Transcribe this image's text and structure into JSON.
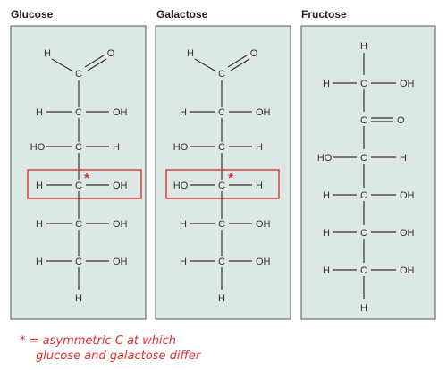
{
  "colors": {
    "panel_fill": "#dce8e6",
    "highlight": "#d93333",
    "note": "#e23030"
  },
  "structures": [
    {
      "title": "Glucose",
      "top": {
        "h_label": "H",
        "c_label": "C",
        "o_label": "O"
      },
      "rows": [
        {
          "left": "H",
          "center": "C",
          "right": "OH"
        },
        {
          "left": "HO",
          "center": "C",
          "right": "H"
        },
        {
          "left": "H",
          "center": "C",
          "right": "OH"
        },
        {
          "left": "H",
          "center": "C",
          "right": "OH"
        },
        {
          "left": "H",
          "center": "C",
          "right": "OH"
        }
      ],
      "bottom": "H",
      "highlight_row": 2
    },
    {
      "title": "Galactose",
      "top": {
        "h_label": "H",
        "c_label": "C",
        "o_label": "O"
      },
      "rows": [
        {
          "left": "H",
          "center": "C",
          "right": "OH"
        },
        {
          "left": "HO",
          "center": "C",
          "right": "H"
        },
        {
          "left": "HO",
          "center": "C",
          "right": "H"
        },
        {
          "left": "H",
          "center": "C",
          "right": "OH"
        },
        {
          "left": "H",
          "center": "C",
          "right": "OH"
        }
      ],
      "bottom": "H",
      "highlight_row": 2
    },
    {
      "title": "Fructose",
      "top_h": "H",
      "rows": [
        {
          "left": "H",
          "center": "C",
          "right": "OH"
        },
        {
          "left": "",
          "center": "C",
          "right": "O",
          "double": true
        },
        {
          "left": "HO",
          "center": "C",
          "right": "H"
        },
        {
          "left": "H",
          "center": "C",
          "right": "OH"
        },
        {
          "left": "H",
          "center": "C",
          "right": "OH"
        },
        {
          "left": "H",
          "center": "C",
          "right": "OH"
        }
      ],
      "bottom": "H"
    }
  ],
  "star_symbol": "*",
  "note": {
    "line1": "* = asymmetric C at which",
    "line2": "glucose and galactose differ"
  }
}
